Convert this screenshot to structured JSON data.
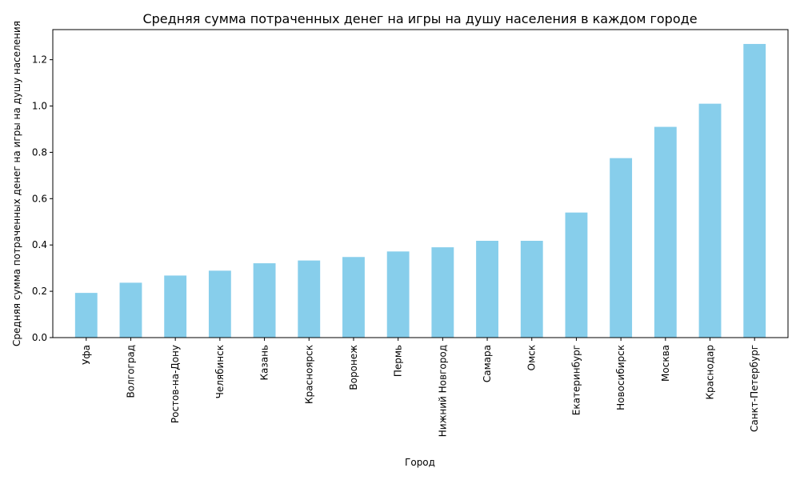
{
  "chart_data": {
    "type": "bar",
    "title": "Средняя сумма потраченных денег на игры на душу населения в каждом городе",
    "xlabel": "Город",
    "ylabel": "Средняя сумма потраченных денег на игры на душу населения",
    "categories": [
      "Уфа",
      "Волгоград",
      "Ростов-на-Дону",
      "Челябинск",
      "Казань",
      "Красноярск",
      "Воронеж",
      "Пермь",
      "Нижний Новгород",
      "Самара",
      "Омск",
      "Екатеринбург",
      "Новосибирск",
      "Москва",
      "Краснодар",
      "Санкт-Петербург"
    ],
    "values": [
      0.193,
      0.237,
      0.268,
      0.289,
      0.321,
      0.333,
      0.348,
      0.372,
      0.39,
      0.418,
      0.418,
      0.54,
      0.775,
      0.91,
      1.01,
      1.268
    ],
    "ylim": [
      0,
      1.33
    ],
    "yticks": [
      "0.0",
      "0.2",
      "0.4",
      "0.6",
      "0.8",
      "1.0",
      "1.2"
    ],
    "bar_color": "#87ceeb",
    "grid": false,
    "legend": false
  }
}
